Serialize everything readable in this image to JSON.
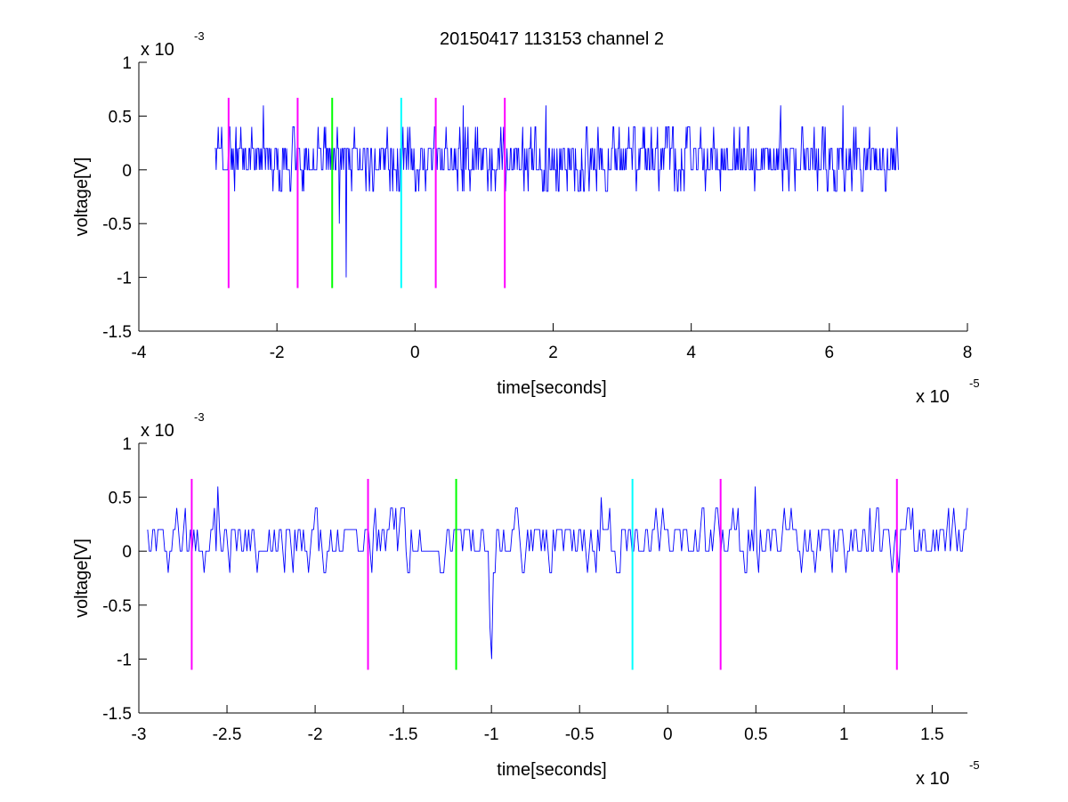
{
  "figure": {
    "title": "20150417 113153 channel 2"
  },
  "chart_data": [
    {
      "type": "line",
      "xlabel": "time[seconds]",
      "ylabel": "voltage[V]",
      "xlim": [
        -4,
        8
      ],
      "ylim": [
        -1.5,
        1
      ],
      "x_ticks": [
        -4,
        -2,
        0,
        2,
        4,
        6,
        8
      ],
      "y_ticks": [
        -1.5,
        -1,
        -0.5,
        0,
        0.5,
        1
      ],
      "x_tick_labels": [
        "-4",
        "-2",
        "0",
        "2",
        "4",
        "6",
        "8"
      ],
      "y_tick_labels": [
        "-1.5",
        "-1",
        "-0.5",
        "0",
        "0.5",
        "1"
      ],
      "x_exponent": {
        "base": "x 10",
        "power": "-5"
      },
      "y_exponent": {
        "base": "x 10",
        "power": "-3"
      },
      "grid": false,
      "legend": "none",
      "series": [
        {
          "color": "#0000ff",
          "x_range": [
            -2.9,
            7.0
          ],
          "level_set": [
            -0.2,
            0,
            0.2,
            0.4
          ],
          "spikes": [
            [
              -1.0,
              -1.0
            ],
            [
              -1.1,
              -0.5
            ],
            [
              5.3,
              0.6
            ],
            [
              -2.2,
              0.6
            ],
            [
              0.7,
              0.6
            ],
            [
              1.9,
              0.6
            ],
            [
              6.2,
              0.6
            ]
          ]
        }
      ],
      "markers": [
        {
          "x": -2.7,
          "ymin": -1.1,
          "ymax": 0.67,
          "color": "#ff00ff"
        },
        {
          "x": -1.7,
          "ymin": -1.1,
          "ymax": 0.67,
          "color": "#ff00ff"
        },
        {
          "x": -1.2,
          "ymin": -1.1,
          "ymax": 0.67,
          "color": "#00ff00"
        },
        {
          "x": -0.2,
          "ymin": -1.1,
          "ymax": 0.67,
          "color": "#00ffff"
        },
        {
          "x": 0.3,
          "ymin": -1.1,
          "ymax": 0.67,
          "color": "#ff00ff"
        },
        {
          "x": 1.3,
          "ymin": -1.1,
          "ymax": 0.67,
          "color": "#ff00ff"
        }
      ]
    },
    {
      "type": "line",
      "xlabel": "time[seconds]",
      "ylabel": "voltage[V]",
      "xlim": [
        -3,
        1.7
      ],
      "ylim": [
        -1.5,
        1
      ],
      "x_ticks": [
        -3,
        -2.5,
        -2,
        -1.5,
        -1,
        -0.5,
        0,
        0.5,
        1,
        1.5
      ],
      "y_ticks": [
        -1.5,
        -1,
        -0.5,
        0,
        0.5,
        1
      ],
      "x_tick_labels": [
        "-3",
        "-2.5",
        "-2",
        "-1.5",
        "-1",
        "-0.5",
        "0",
        "0.5",
        "1",
        "1.5"
      ],
      "y_tick_labels": [
        "-1.5",
        "-1",
        "-0.5",
        "0",
        "0.5",
        "1"
      ],
      "x_exponent": {
        "base": "x 10",
        "power": "-5"
      },
      "y_exponent": {
        "base": "x 10",
        "power": "-3"
      },
      "grid": false,
      "legend": "none",
      "series": [
        {
          "color": "#0000ff",
          "x_range": [
            -2.95,
            1.7
          ],
          "level_set": [
            -0.2,
            0,
            0.2,
            0.4
          ],
          "spikes": [
            [
              -1.0,
              -1.0
            ],
            [
              -1.01,
              -0.7
            ],
            [
              -2.55,
              0.6
            ],
            [
              0.5,
              0.6
            ],
            [
              -0.38,
              0.5
            ],
            [
              -2.0,
              0.4
            ],
            [
              1.15,
              0.4
            ]
          ]
        }
      ],
      "markers": [
        {
          "x": -2.7,
          "ymin": -1.1,
          "ymax": 0.67,
          "color": "#ff00ff"
        },
        {
          "x": -1.7,
          "ymin": -1.1,
          "ymax": 0.67,
          "color": "#ff00ff"
        },
        {
          "x": -1.2,
          "ymin": -1.1,
          "ymax": 0.67,
          "color": "#00ff00"
        },
        {
          "x": -0.2,
          "ymin": -1.1,
          "ymax": 0.67,
          "color": "#00ffff"
        },
        {
          "x": 0.3,
          "ymin": -1.1,
          "ymax": 0.67,
          "color": "#ff00ff"
        },
        {
          "x": 1.3,
          "ymin": -1.1,
          "ymax": 0.67,
          "color": "#ff00ff"
        }
      ]
    }
  ]
}
